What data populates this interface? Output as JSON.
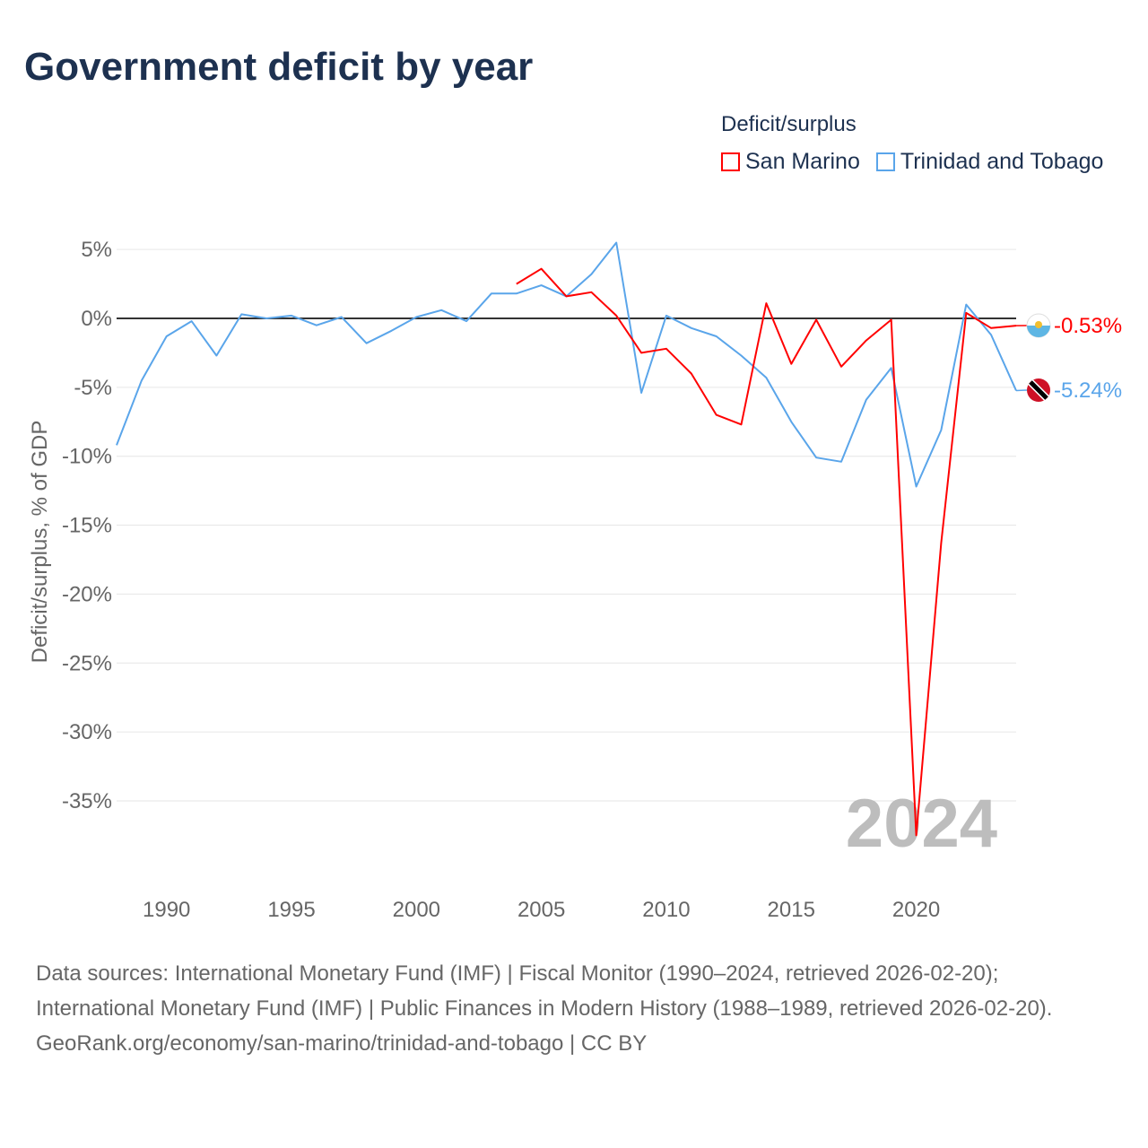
{
  "title": "Government deficit by year",
  "legend": {
    "title": "Deficit/surplus"
  },
  "footer": {
    "sources": "Data sources: International Monetary Fund (IMF) | Fiscal Monitor (1990–2024, retrieved 2026-02-20); International Monetary Fund (IMF) | Public Finances in Modern History (1988–1989, retrieved 2026-02-20).",
    "attribution": "GeoRank.org/economy/san-marino/trinidad-and-tobago | CC BY"
  },
  "chart_data": {
    "type": "line",
    "title": "Government deficit by year",
    "ylabel": "Deficit/surplus, % of GDP",
    "xlabel": "",
    "xlim": [
      1988,
      2024
    ],
    "ylim": [
      -40,
      5
    ],
    "x_ticks": [
      1990,
      1995,
      2000,
      2005,
      2010,
      2015,
      2020
    ],
    "x_tick_labels": [
      "1990",
      "1995",
      "2000",
      "2005",
      "2010",
      "2015",
      "2020"
    ],
    "y_ticks": [
      5,
      0,
      -5,
      -10,
      -15,
      -20,
      -25,
      -30,
      -35
    ],
    "y_tick_labels": [
      "5%",
      "0%",
      "-5%",
      "-10%",
      "-15%",
      "-20%",
      "-25%",
      "-30%",
      "-35%"
    ],
    "year_watermark": "2024",
    "legend_placement": "top-right",
    "series": [
      {
        "name": "San Marino",
        "color": "#ff0000",
        "end_label": "-0.53%",
        "x": [
          2004,
          2005,
          2006,
          2007,
          2008,
          2009,
          2010,
          2011,
          2012,
          2013,
          2014,
          2015,
          2016,
          2017,
          2018,
          2019,
          2020,
          2021,
          2022,
          2023,
          2024
        ],
        "values": [
          2.5,
          3.6,
          1.6,
          1.9,
          0.2,
          -2.5,
          -2.2,
          -4.0,
          -7.0,
          -7.7,
          1.1,
          -3.3,
          -0.1,
          -3.5,
          -1.6,
          -0.1,
          -37.5,
          -16.3,
          0.4,
          -0.7,
          -0.53
        ]
      },
      {
        "name": "Trinidad and Tobago",
        "color": "#5aa5ea",
        "end_label": "-5.24%",
        "x": [
          1988,
          1989,
          1990,
          1991,
          1992,
          1993,
          1994,
          1995,
          1996,
          1997,
          1998,
          1999,
          2000,
          2001,
          2002,
          2003,
          2004,
          2005,
          2006,
          2007,
          2008,
          2009,
          2010,
          2011,
          2012,
          2013,
          2014,
          2015,
          2016,
          2017,
          2018,
          2019,
          2020,
          2021,
          2022,
          2023,
          2024
        ],
        "values": [
          -9.2,
          -4.5,
          -1.3,
          -0.2,
          -2.7,
          0.3,
          0,
          0.2,
          -0.5,
          0.1,
          -1.8,
          -0.9,
          0.1,
          0.6,
          -0.2,
          1.8,
          1.8,
          2.4,
          1.6,
          3.2,
          5.5,
          -5.4,
          0.2,
          -0.7,
          -1.3,
          -2.7,
          -4.3,
          -7.5,
          -10.1,
          -10.4,
          -5.9,
          -3.6,
          -12.2,
          -8.1,
          1.0,
          -1.2,
          -5.24
        ]
      }
    ]
  }
}
